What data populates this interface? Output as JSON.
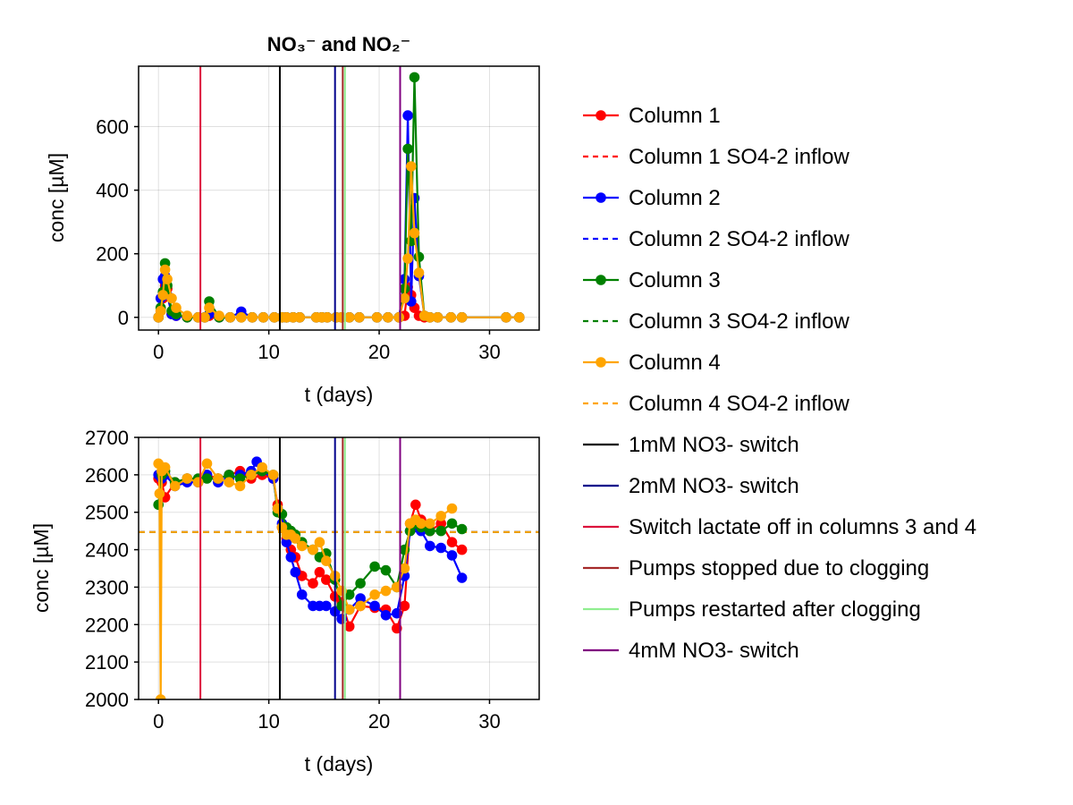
{
  "colors": {
    "col1": "#ff0000",
    "col2": "#0000ff",
    "col3": "#008000",
    "col4": "#ffa500",
    "sw1mM": "#000000",
    "sw2mM": "#00008b",
    "lactate": "#dc143c",
    "stopped": "#a52a2a",
    "restarted": "#90ee90",
    "sw4mM": "#800080"
  },
  "legend": [
    {
      "label": "Column 1",
      "style": "line-marker",
      "color": "#ff0000"
    },
    {
      "label": "Column 1 SO4-2 inflow",
      "style": "dashed",
      "color": "#ff0000"
    },
    {
      "label": "Column 2",
      "style": "line-marker",
      "color": "#0000ff"
    },
    {
      "label": "Column 2 SO4-2 inflow",
      "style": "dashed",
      "color": "#0000ff"
    },
    {
      "label": "Column 3",
      "style": "line-marker",
      "color": "#008000"
    },
    {
      "label": "Column 3 SO4-2 inflow",
      "style": "dashed",
      "color": "#008000"
    },
    {
      "label": "Column 4",
      "style": "line-marker",
      "color": "#ffa500"
    },
    {
      "label": "Column 4 SO4-2 inflow",
      "style": "dashed",
      "color": "#ffa500"
    },
    {
      "label": "1mM NO3- switch",
      "style": "solid",
      "color": "#000000"
    },
    {
      "label": "2mM NO3- switch",
      "style": "solid",
      "color": "#00008b"
    },
    {
      "label": "Switch lactate off in columns 3 and 4",
      "style": "solid",
      "color": "#dc143c"
    },
    {
      "label": "Pumps stopped due to clogging",
      "style": "solid",
      "color": "#a52a2a"
    },
    {
      "label": "Pumps restarted after clogging",
      "style": "solid",
      "color": "#90ee90"
    },
    {
      "label": "4mM NO3- switch",
      "style": "solid",
      "color": "#800080"
    }
  ],
  "chart_data": [
    {
      "type": "line",
      "title": "NO₃⁻ and NO₂⁻",
      "xlabel": "t (days)",
      "ylabel": "conc [µM]",
      "xlim": [
        -1.8,
        34.5
      ],
      "ylim": [
        -40,
        790
      ],
      "xticks": [
        0,
        10,
        20,
        30
      ],
      "yticks": [
        0,
        200,
        400,
        600
      ],
      "grid": true,
      "vlines": [
        {
          "x": 3.8,
          "color": "#dc143c"
        },
        {
          "x": 11.0,
          "color": "#000000"
        },
        {
          "x": 16.0,
          "color": "#00008b"
        },
        {
          "x": 16.7,
          "color": "#a52a2a"
        },
        {
          "x": 16.9,
          "color": "#90ee90"
        },
        {
          "x": 21.9,
          "color": "#800080"
        }
      ],
      "series": [
        {
          "name": "Column 1",
          "color": "#ff0000",
          "x": [
            0,
            0.2,
            0.4,
            0.6,
            0.8,
            1.2,
            1.6,
            2.6,
            3.6,
            4.2,
            4.6,
            5.5,
            6.5,
            7.5,
            8.5,
            9.5,
            10.5,
            11.2,
            11.6,
            12.2,
            12.8,
            14.3,
            14.8,
            15.3,
            16.1,
            16.6,
            17.3,
            18.2,
            19.8,
            20.8,
            21.8,
            22.3,
            22.6,
            22.9,
            23.2,
            23.6,
            24.1,
            24.6,
            25.3,
            26.5,
            27.5,
            31.5,
            32.7
          ],
          "y": [
            0,
            20,
            60,
            100,
            90,
            10,
            5,
            0,
            0,
            0,
            5,
            0,
            0,
            0,
            0,
            0,
            0,
            0,
            0,
            0,
            0,
            0,
            0,
            0,
            0,
            0,
            0,
            0,
            0,
            0,
            0,
            5,
            95,
            70,
            30,
            5,
            0,
            0,
            0,
            0,
            0,
            0,
            0
          ]
        },
        {
          "name": "Column 2",
          "color": "#0000ff",
          "x": [
            0,
            0.2,
            0.4,
            0.6,
            0.8,
            1.2,
            1.6,
            2.6,
            3.6,
            4.2,
            4.6,
            5.5,
            6.5,
            7.5,
            8.5,
            9.5,
            10.5,
            11.2,
            11.6,
            12.2,
            12.8,
            14.3,
            14.8,
            15.3,
            16.1,
            16.6,
            17.3,
            18.2,
            19.8,
            20.8,
            21.8,
            22.3,
            22.6,
            22.9,
            23.2,
            23.6,
            24.1,
            24.6,
            25.3,
            26.5,
            27.5,
            31.5,
            32.7
          ],
          "y": [
            0,
            60,
            120,
            130,
            70,
            10,
            5,
            0,
            0,
            0,
            10,
            0,
            0,
            18,
            0,
            0,
            0,
            0,
            0,
            0,
            0,
            0,
            0,
            0,
            0,
            0,
            0,
            0,
            0,
            0,
            0,
            120,
            635,
            50,
            375,
            130,
            5,
            0,
            0,
            0,
            0,
            0,
            0
          ]
        },
        {
          "name": "Column 3",
          "color": "#008000",
          "x": [
            0,
            0.2,
            0.4,
            0.6,
            0.8,
            1.2,
            1.6,
            2.6,
            3.6,
            4.2,
            4.6,
            5.5,
            6.5,
            7.5,
            8.5,
            9.5,
            10.5,
            11.2,
            11.6,
            12.2,
            12.8,
            14.3,
            14.8,
            15.3,
            16.1,
            16.6,
            17.3,
            18.2,
            19.8,
            20.8,
            21.8,
            22.3,
            22.6,
            22.9,
            23.2,
            23.6,
            24.1,
            24.6,
            25.3,
            26.5,
            27.5,
            31.5,
            32.7
          ],
          "y": [
            0,
            30,
            80,
            170,
            100,
            20,
            10,
            0,
            0,
            0,
            50,
            0,
            0,
            0,
            0,
            0,
            0,
            0,
            0,
            0,
            0,
            0,
            0,
            0,
            0,
            0,
            0,
            0,
            0,
            0,
            0,
            90,
            530,
            240,
            755,
            190,
            5,
            0,
            0,
            0,
            0,
            0,
            0
          ]
        },
        {
          "name": "Column 4",
          "color": "#ffa500",
          "x": [
            0,
            0.2,
            0.4,
            0.6,
            0.8,
            1.2,
            1.6,
            2.6,
            3.6,
            4.2,
            4.6,
            5.5,
            6.5,
            7.5,
            8.5,
            9.5,
            10.5,
            11.2,
            11.6,
            12.2,
            12.8,
            14.3,
            14.8,
            15.3,
            16.1,
            16.6,
            17.3,
            18.2,
            19.8,
            20.8,
            21.8,
            22.3,
            22.6,
            22.9,
            23.2,
            23.6,
            24.1,
            24.6,
            25.3,
            26.5,
            27.5,
            31.5,
            32.7
          ],
          "y": [
            0,
            20,
            70,
            150,
            120,
            60,
            30,
            5,
            0,
            0,
            30,
            5,
            0,
            0,
            0,
            0,
            0,
            0,
            0,
            0,
            0,
            0,
            0,
            0,
            0,
            0,
            0,
            0,
            0,
            0,
            0,
            60,
            185,
            475,
            265,
            140,
            5,
            0,
            0,
            0,
            0,
            0,
            0
          ]
        }
      ]
    },
    {
      "type": "line",
      "title": "",
      "xlabel": "t (days)",
      "ylabel": "conc [µM]",
      "xlim": [
        -1.8,
        34.5
      ],
      "ylim": [
        2000,
        2700
      ],
      "xticks": [
        0,
        10,
        20,
        30
      ],
      "yticks": [
        2000,
        2100,
        2200,
        2300,
        2400,
        2500,
        2600,
        2700
      ],
      "grid": true,
      "hlines": [
        {
          "y": 2447,
          "color": "#ff0000",
          "dashed": true
        },
        {
          "y": 2447,
          "color": "#0000ff",
          "dashed": true
        },
        {
          "y": 2447,
          "color": "#008000",
          "dashed": true
        },
        {
          "y": 2447,
          "color": "#ffa500",
          "dashed": true
        }
      ],
      "vlines": [
        {
          "x": 3.8,
          "color": "#dc143c"
        },
        {
          "x": 11.0,
          "color": "#000000"
        },
        {
          "x": 16.0,
          "color": "#00008b"
        },
        {
          "x": 16.7,
          "color": "#a52a2a"
        },
        {
          "x": 16.9,
          "color": "#90ee90"
        },
        {
          "x": 21.9,
          "color": "#800080"
        }
      ],
      "series": [
        {
          "name": "Column 1",
          "color": "#ff0000",
          "x": [
            0,
            0.3,
            0.6,
            1.5,
            2.6,
            3.6,
            4.4,
            5.4,
            6.4,
            7.4,
            8.4,
            9.4,
            10.4,
            10.8,
            11.2,
            11.6,
            12.0,
            12.4,
            13.0,
            14.0,
            14.6,
            15.2,
            16.0,
            16.6,
            17.3,
            18.3,
            19.6,
            20.6,
            21.6,
            22.3,
            22.8,
            23.3,
            23.8,
            24.6,
            25.6,
            26.6,
            27.5
          ],
          "y": [
            2590,
            2580,
            2540,
            2580,
            2590,
            2580,
            2600,
            2590,
            2600,
            2610,
            2590,
            2600,
            2590,
            2520,
            2460,
            2430,
            2400,
            2380,
            2330,
            2310,
            2340,
            2320,
            2275,
            2260,
            2195,
            2250,
            2245,
            2240,
            2190,
            2250,
            2470,
            2520,
            2480,
            2450,
            2470,
            2420,
            2400
          ]
        },
        {
          "name": "Column 2",
          "color": "#0000ff",
          "x": [
            0,
            0.3,
            0.6,
            1.5,
            2.6,
            3.6,
            4.4,
            5.4,
            6.4,
            7.4,
            8.4,
            8.9,
            9.4,
            10.4,
            10.8,
            11.2,
            11.6,
            12.0,
            12.4,
            13.0,
            14.0,
            14.6,
            15.2,
            16.0,
            16.6,
            17.3,
            18.3,
            19.6,
            20.6,
            21.6,
            22.3,
            22.8,
            23.3,
            23.8,
            24.6,
            25.6,
            26.6,
            27.5
          ],
          "y": [
            2600,
            2590,
            2600,
            2570,
            2580,
            2580,
            2600,
            2580,
            2590,
            2600,
            2610,
            2635,
            2610,
            2590,
            2510,
            2470,
            2420,
            2380,
            2340,
            2280,
            2250,
            2250,
            2250,
            2235,
            2215,
            2240,
            2270,
            2250,
            2225,
            2230,
            2330,
            2450,
            2460,
            2450,
            2410,
            2405,
            2385,
            2325
          ]
        },
        {
          "name": "Column 3",
          "color": "#008000",
          "x": [
            0,
            0.3,
            0.6,
            1.5,
            2.6,
            3.6,
            4.4,
            5.4,
            6.4,
            7.4,
            8.4,
            9.4,
            10.4,
            10.8,
            11.2,
            11.6,
            12.0,
            12.4,
            13.0,
            14.0,
            14.6,
            15.2,
            16.0,
            16.6,
            17.3,
            18.3,
            19.6,
            20.6,
            21.6,
            22.3,
            22.8,
            23.3,
            23.8,
            24.6,
            25.6,
            26.6,
            27.5
          ],
          "y": [
            2520,
            2600,
            2610,
            2580,
            2590,
            2590,
            2590,
            2590,
            2600,
            2590,
            2600,
            2610,
            2600,
            2500,
            2495,
            2460,
            2450,
            2440,
            2420,
            2400,
            2380,
            2390,
            2320,
            2250,
            2280,
            2310,
            2355,
            2345,
            2300,
            2400,
            2450,
            2470,
            2460,
            2450,
            2450,
            2470,
            2455
          ]
        },
        {
          "name": "Column 4",
          "color": "#ffa500",
          "x": [
            0,
            0.1,
            0.2,
            0.3,
            0.6,
            1.5,
            2.6,
            3.6,
            4.4,
            5.4,
            6.4,
            7.4,
            8.4,
            9.4,
            10.4,
            10.8,
            11.2,
            11.6,
            12.0,
            12.4,
            13.0,
            14.0,
            14.6,
            15.2,
            16.0,
            16.6,
            17.3,
            18.3,
            19.6,
            20.6,
            21.6,
            22.3,
            22.8,
            23.3,
            23.8,
            24.6,
            25.6,
            26.6
          ],
          "y": [
            2630,
            2550,
            2000,
            2610,
            2620,
            2570,
            2590,
            2580,
            2630,
            2590,
            2580,
            2570,
            2600,
            2620,
            2600,
            2510,
            2460,
            2440,
            2440,
            2430,
            2410,
            2400,
            2420,
            2370,
            2330,
            2290,
            2240,
            2250,
            2280,
            2290,
            2300,
            2350,
            2470,
            2480,
            2470,
            2470,
            2490,
            2510
          ]
        }
      ]
    }
  ]
}
